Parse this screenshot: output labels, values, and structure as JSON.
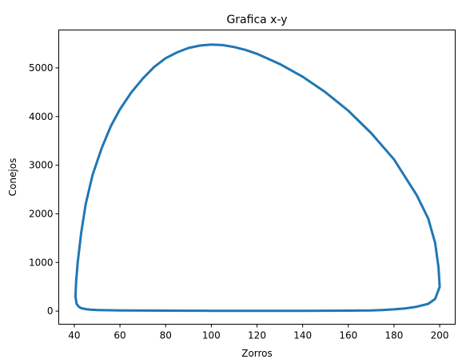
{
  "chart_data": {
    "type": "line",
    "title": "Grafica x-y",
    "xlabel": "Zorros",
    "ylabel": "Conejos",
    "xlim": [
      33.2,
      206.8
    ],
    "ylim": [
      -270,
      5780
    ],
    "xticks": [
      40,
      60,
      80,
      100,
      120,
      140,
      160,
      180,
      200
    ],
    "yticks": [
      0,
      1000,
      2000,
      3000,
      4000,
      5000
    ],
    "xtick_labels": [
      "40",
      "60",
      "80",
      "100",
      "120",
      "140",
      "160",
      "180",
      "200"
    ],
    "ytick_labels": [
      "0",
      "1000",
      "2000",
      "3000",
      "4000",
      "5000"
    ],
    "grid": false,
    "series": [
      {
        "color": "#1f77b4",
        "x": [
          200,
          198,
          195,
          190,
          185,
          180,
          175,
          170,
          160,
          150,
          140,
          130,
          120,
          110,
          100,
          90,
          80,
          70,
          60,
          55,
          50,
          47,
          45,
          43,
          42,
          41,
          40.5,
          40.8,
          41.5,
          43,
          45,
          48,
          52,
          56,
          60,
          65,
          70,
          75,
          80,
          85,
          90,
          95,
          100,
          105,
          110,
          115,
          120,
          130,
          140,
          150,
          160,
          170,
          180,
          190,
          195,
          198,
          199.5,
          200
        ],
        "y": [
          500,
          250,
          150,
          90,
          55,
          35,
          22,
          15,
          10,
          8,
          7,
          6,
          6,
          6,
          7,
          8,
          9,
          11,
          14,
          17,
          22,
          30,
          40,
          60,
          90,
          150,
          300,
          600,
          1000,
          1600,
          2200,
          2800,
          3350,
          3800,
          4150,
          4500,
          4780,
          5020,
          5200,
          5320,
          5410,
          5460,
          5480,
          5470,
          5430,
          5370,
          5290,
          5080,
          4820,
          4500,
          4120,
          3660,
          3120,
          2380,
          1900,
          1400,
          900,
          500
        ]
      }
    ]
  }
}
